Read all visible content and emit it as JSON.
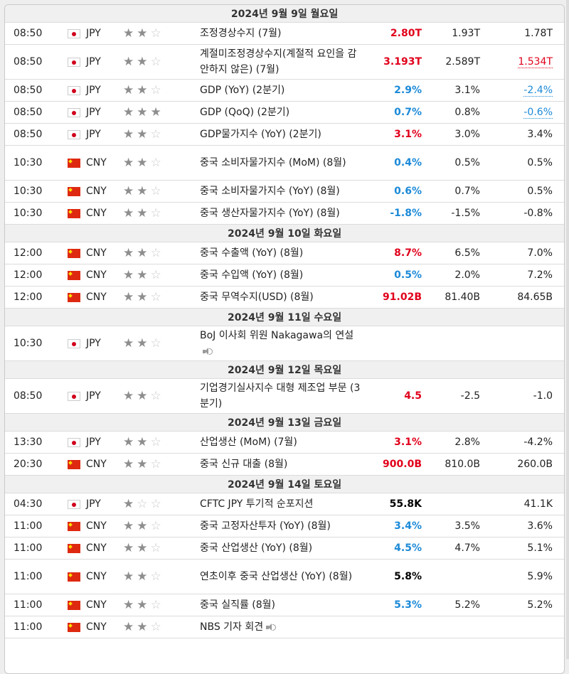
{
  "colors": {
    "actual_red": "#e1001b",
    "actual_blue": "#1c8ad8",
    "header_bg": "#f0f0f0",
    "star_on": "#8e8e8e",
    "star_off": "#c9c9c9"
  },
  "days": [
    {
      "header": "2024년 9월 9일 월요일",
      "events": [
        {
          "time": "08:50",
          "flag": "jp",
          "currency": "JPY",
          "stars": 2,
          "name": "조정경상수지 (7월)",
          "actual": "2.80T",
          "actual_color": "red",
          "forecast": "1.93T",
          "previous": "1.78T",
          "previous_style": "",
          "sound": false,
          "tall": false
        },
        {
          "time": "08:50",
          "flag": "jp",
          "currency": "JPY",
          "stars": 2,
          "name": "계절미조정경상수지(계절적 요인을 감안하지 않은) (7월)",
          "actual": "3.193T",
          "actual_color": "red",
          "forecast": "2.589T",
          "previous": "1.534T",
          "previous_style": "red",
          "sound": false,
          "tall": true
        },
        {
          "time": "08:50",
          "flag": "jp",
          "currency": "JPY",
          "stars": 2,
          "name": "GDP (YoY) (2분기)",
          "actual": "2.9%",
          "actual_color": "blue",
          "forecast": "3.1%",
          "previous": "-2.4%",
          "previous_style": "blue",
          "sound": false,
          "tall": false
        },
        {
          "time": "08:50",
          "flag": "jp",
          "currency": "JPY",
          "stars": 3,
          "name": "GDP (QoQ) (2분기)",
          "actual": "0.7%",
          "actual_color": "blue",
          "forecast": "0.8%",
          "previous": "-0.6%",
          "previous_style": "blue",
          "sound": false,
          "tall": false
        },
        {
          "time": "08:50",
          "flag": "jp",
          "currency": "JPY",
          "stars": 2,
          "name": "GDP물가지수 (YoY) (2분기)",
          "actual": "3.1%",
          "actual_color": "red",
          "forecast": "3.0%",
          "previous": "3.4%",
          "previous_style": "",
          "sound": false,
          "tall": false
        },
        {
          "time": "10:30",
          "flag": "cn",
          "currency": "CNY",
          "stars": 2,
          "name": "중국 소비자물가지수 (MoM) (8월)",
          "actual": "0.4%",
          "actual_color": "blue",
          "forecast": "0.5%",
          "previous": "0.5%",
          "previous_style": "",
          "sound": false,
          "tall": true
        },
        {
          "time": "10:30",
          "flag": "cn",
          "currency": "CNY",
          "stars": 2,
          "name": "중국 소비자물가지수 (YoY) (8월)",
          "actual": "0.6%",
          "actual_color": "blue",
          "forecast": "0.7%",
          "previous": "0.5%",
          "previous_style": "",
          "sound": false,
          "tall": false
        },
        {
          "time": "10:30",
          "flag": "cn",
          "currency": "CNY",
          "stars": 2,
          "name": "중국 생산자물가지수 (YoY) (8월)",
          "actual": "-1.8%",
          "actual_color": "blue",
          "forecast": "-1.5%",
          "previous": "-0.8%",
          "previous_style": "",
          "sound": false,
          "tall": false
        }
      ]
    },
    {
      "header": "2024년 9월 10일 화요일",
      "events": [
        {
          "time": "12:00",
          "flag": "cn",
          "currency": "CNY",
          "stars": 2,
          "name": "중국 수출액 (YoY) (8월)",
          "actual": "8.7%",
          "actual_color": "red",
          "forecast": "6.5%",
          "previous": "7.0%",
          "previous_style": "",
          "sound": false,
          "tall": false
        },
        {
          "time": "12:00",
          "flag": "cn",
          "currency": "CNY",
          "stars": 2,
          "name": "중국 수입액 (YoY) (8월)",
          "actual": "0.5%",
          "actual_color": "blue",
          "forecast": "2.0%",
          "previous": "7.2%",
          "previous_style": "",
          "sound": false,
          "tall": false
        },
        {
          "time": "12:00",
          "flag": "cn",
          "currency": "CNY",
          "stars": 2,
          "name": "중국 무역수지(USD) (8월)",
          "actual": "91.02B",
          "actual_color": "red",
          "forecast": "81.40B",
          "previous": "84.65B",
          "previous_style": "",
          "sound": false,
          "tall": false
        }
      ]
    },
    {
      "header": "2024년 9월 11일 수요일",
      "events": [
        {
          "time": "10:30",
          "flag": "jp",
          "currency": "JPY",
          "stars": 2,
          "name": "BoJ 이사회 위원 Nakagawa의 연설",
          "actual": "",
          "actual_color": "black",
          "forecast": "",
          "previous": "",
          "previous_style": "",
          "sound": true,
          "tall": true
        }
      ]
    },
    {
      "header": "2024년 9월 12일 목요일",
      "events": [
        {
          "time": "08:50",
          "flag": "jp",
          "currency": "JPY",
          "stars": 2,
          "name": "기업경기실사지수 대형 제조업 부문 (3분기)",
          "actual": "4.5",
          "actual_color": "red",
          "forecast": "-2.5",
          "previous": "-1.0",
          "previous_style": "",
          "sound": false,
          "tall": true
        }
      ]
    },
    {
      "header": "2024년 9월 13일 금요일",
      "events": [
        {
          "time": "13:30",
          "flag": "jp",
          "currency": "JPY",
          "stars": 2,
          "name": "산업생산 (MoM) (7월)",
          "actual": "3.1%",
          "actual_color": "red",
          "forecast": "2.8%",
          "previous": "-4.2%",
          "previous_style": "",
          "sound": false,
          "tall": false
        },
        {
          "time": "20:30",
          "flag": "cn",
          "currency": "CNY",
          "stars": 2,
          "name": "중국 신규 대출 (8월)",
          "actual": "900.0B",
          "actual_color": "red",
          "forecast": "810.0B",
          "previous": "260.0B",
          "previous_style": "",
          "sound": false,
          "tall": false
        }
      ]
    },
    {
      "header": "2024년 9월 14일 토요일",
      "events": [
        {
          "time": "04:30",
          "flag": "jp",
          "currency": "JPY",
          "stars": 1,
          "name": "CFTC JPY 투기적 순포지션",
          "actual": "55.8K",
          "actual_color": "black",
          "forecast": "",
          "previous": "41.1K",
          "previous_style": "",
          "sound": false,
          "tall": false
        },
        {
          "time": "11:00",
          "flag": "cn",
          "currency": "CNY",
          "stars": 2,
          "name": "중국 고정자산투자 (YoY) (8월)",
          "actual": "3.4%",
          "actual_color": "blue",
          "forecast": "3.5%",
          "previous": "3.6%",
          "previous_style": "",
          "sound": false,
          "tall": false
        },
        {
          "time": "11:00",
          "flag": "cn",
          "currency": "CNY",
          "stars": 2,
          "name": "중국 산업생산 (YoY) (8월)",
          "actual": "4.5%",
          "actual_color": "blue",
          "forecast": "4.7%",
          "previous": "5.1%",
          "previous_style": "",
          "sound": false,
          "tall": false
        },
        {
          "time": "11:00",
          "flag": "cn",
          "currency": "CNY",
          "stars": 2,
          "name": "연초이후 중국 산업생산 (YoY) (8월)",
          "actual": "5.8%",
          "actual_color": "black",
          "forecast": "",
          "previous": "5.9%",
          "previous_style": "",
          "sound": false,
          "tall": true
        },
        {
          "time": "11:00",
          "flag": "cn",
          "currency": "CNY",
          "stars": 2,
          "name": "중국 실직률 (8월)",
          "actual": "5.3%",
          "actual_color": "blue",
          "forecast": "5.2%",
          "previous": "5.2%",
          "previous_style": "",
          "sound": false,
          "tall": false
        },
        {
          "time": "11:00",
          "flag": "cn",
          "currency": "CNY",
          "stars": 2,
          "name": "NBS 기자 회견",
          "actual": "",
          "actual_color": "black",
          "forecast": "",
          "previous": "",
          "previous_style": "",
          "sound": true,
          "tall": false
        }
      ]
    }
  ]
}
